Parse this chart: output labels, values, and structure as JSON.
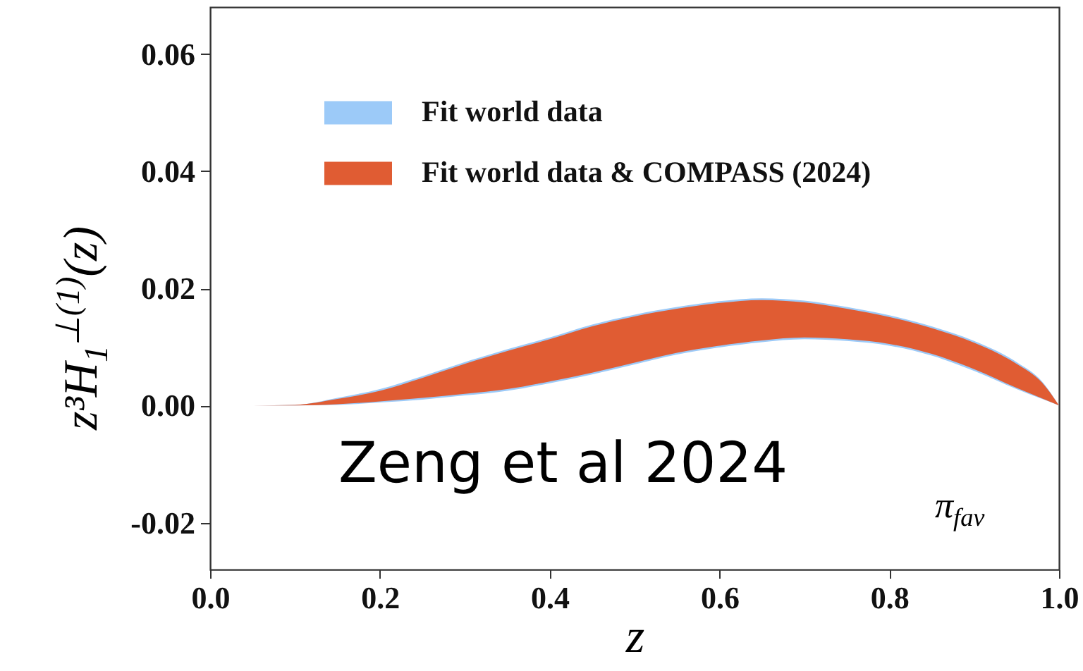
{
  "chart_data": {
    "type": "area",
    "xlabel": "z",
    "ylabel": "z³H$_{1}$$^{⊥(1)}$(z)",
    "x": [
      0,
      0.05,
      0.1,
      0.15,
      0.2,
      0.25,
      0.3,
      0.35,
      0.4,
      0.45,
      0.5,
      0.55,
      0.6,
      0.65,
      0.7,
      0.75,
      0.8,
      0.85,
      0.9,
      0.95,
      0.98,
      1.0
    ],
    "series": [
      {
        "name": "Fit world data",
        "color": "#9ccaf8",
        "lower": [
          0,
          0,
          0,
          0.0001,
          0.0005,
          0.001,
          0.0017,
          0.0025,
          0.0038,
          0.0053,
          0.007,
          0.0087,
          0.0099,
          0.0108,
          0.0113,
          0.011,
          0.0102,
          0.0085,
          0.0059,
          0.0028,
          0.0011,
          0
        ],
        "values": [
          null,
          null,
          null,
          null,
          null,
          null,
          null,
          null,
          null,
          null,
          null,
          null,
          null,
          null,
          null,
          null,
          null,
          null,
          null,
          null,
          null,
          null
        ],
        "upper": [
          0,
          0,
          0.0001,
          0.0013,
          0.0028,
          0.005,
          0.0074,
          0.0096,
          0.0116,
          0.0138,
          0.0155,
          0.0168,
          0.0178,
          0.0183,
          0.0179,
          0.0168,
          0.0154,
          0.0135,
          0.011,
          0.0074,
          0.0041,
          0
        ]
      },
      {
        "name": "Fit world data & COMPASS (2024)",
        "color": "#e05c33",
        "lower": [
          0,
          0,
          0,
          0.0002,
          0.0007,
          0.0013,
          0.002,
          0.0028,
          0.0041,
          0.0056,
          0.0073,
          0.009,
          0.0102,
          0.0111,
          0.0116,
          0.0113,
          0.0105,
          0.0088,
          0.0062,
          0.003,
          0.0012,
          0
        ],
        "values": [
          null,
          null,
          null,
          null,
          null,
          null,
          null,
          null,
          null,
          null,
          null,
          null,
          null,
          null,
          null,
          null,
          null,
          null,
          null,
          null,
          null,
          null
        ],
        "upper": [
          0,
          0,
          0.0001,
          0.0011,
          0.0025,
          0.0047,
          0.0071,
          0.0093,
          0.0113,
          0.0135,
          0.0152,
          0.0165,
          0.0175,
          0.018,
          0.0176,
          0.0165,
          0.0151,
          0.0132,
          0.0107,
          0.0071,
          0.0039,
          0
        ]
      }
    ],
    "xlim": [
      0,
      1
    ],
    "xticks": [
      {
        "value": 0,
        "label": "0.0"
      },
      0.2,
      0.4,
      0.6,
      0.8,
      {
        "value": 1,
        "label": "1.0"
      }
    ],
    "ylim": [
      -0.028,
      0.068
    ],
    "yticks": [
      {
        "value": -0.02,
        "label": "-0.02"
      },
      {
        "value": 0,
        "label": "0.00"
      },
      {
        "value": 0.02,
        "label": "0.02"
      },
      {
        "value": 0.04,
        "label": "0.04"
      },
      {
        "value": 0.06,
        "label": "0.06"
      }
    ],
    "legend": "top left",
    "grid": false,
    "annotations": [
      "Zeng et al 2024",
      "π$_{fav}$"
    ]
  }
}
